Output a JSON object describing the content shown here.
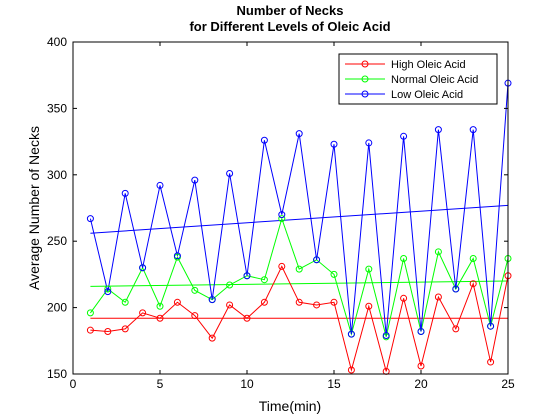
{
  "chart_data": {
    "type": "line",
    "title": [
      "Number of Necks",
      "for Different Levels of Oleic Acid"
    ],
    "xlabel": "Time(min)",
    "ylabel": "Average Number of Necks",
    "xlim": [
      0,
      25
    ],
    "ylim": [
      150,
      400
    ],
    "xticks": [
      0,
      5,
      10,
      15,
      20,
      25
    ],
    "yticks": [
      150,
      200,
      250,
      300,
      350,
      400
    ],
    "grid": false,
    "legend_position": "top-right",
    "x": [
      1,
      2,
      3,
      4,
      5,
      6,
      7,
      8,
      9,
      10,
      11,
      12,
      13,
      14,
      15,
      16,
      17,
      18,
      19,
      20,
      21,
      22,
      23,
      24,
      25
    ],
    "series": [
      {
        "name": "High Oleic Acid",
        "color": "#ff0000",
        "marker": "circle",
        "values": [
          183,
          182,
          184,
          196,
          192,
          204,
          194,
          177,
          202,
          192,
          204,
          231,
          204,
          202,
          204,
          153,
          201,
          152,
          207,
          156,
          208,
          184,
          218,
          159,
          224
        ],
        "trend": [
          192,
          192
        ]
      },
      {
        "name": "Normal Oleic Acid",
        "color": "#00ff00",
        "marker": "circle",
        "values": [
          196,
          214,
          204,
          230,
          201,
          238,
          213,
          206,
          217,
          224,
          221,
          267,
          229,
          236,
          225,
          180,
          229,
          178,
          237,
          182,
          242,
          214,
          237,
          186,
          237
        ],
        "trend": [
          216,
          220
        ]
      },
      {
        "name": "Low Oleic Acid",
        "color": "#0000ff",
        "marker": "circle",
        "values": [
          267,
          212,
          286,
          230,
          292,
          239,
          296,
          206,
          301,
          224,
          326,
          270,
          331,
          236,
          323,
          180,
          324,
          179,
          329,
          182,
          334,
          214,
          334,
          186,
          369
        ],
        "trend": [
          256,
          277
        ]
      }
    ]
  }
}
